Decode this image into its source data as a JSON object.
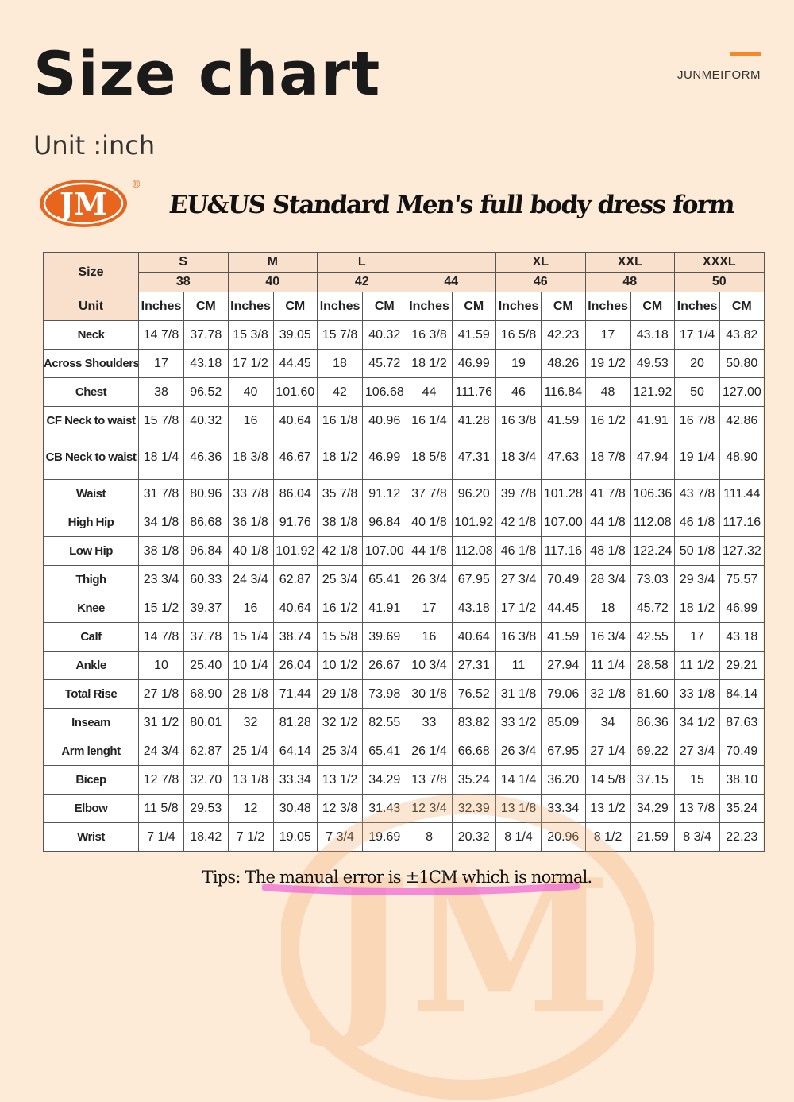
{
  "header": {
    "title": "Size chart",
    "brand": "JUNMEIFORM"
  },
  "unit_label": "Unit :inch",
  "logo": {
    "text": "JM",
    "mark": "®"
  },
  "subtitle": "EU&US Standard Men's full body dress form",
  "colors": {
    "background": "#fdebd7",
    "header_cell": "#f9e0cc",
    "accent": "#f28a2c",
    "highlight": "#f06ad8"
  },
  "table": {
    "size_label": "Size",
    "unit_label": "Unit",
    "sizes": [
      "S",
      "M",
      "L",
      "",
      "XL",
      "XXL",
      "XXXL"
    ],
    "numbers": [
      "38",
      "40",
      "42",
      "44",
      "46",
      "48",
      "50"
    ],
    "unit_inches": "Inches",
    "unit_cm": "CM",
    "rows": [
      {
        "label": "Neck",
        "values": [
          "14 7/8",
          "37.78",
          "15 3/8",
          "39.05",
          "15 7/8",
          "40.32",
          "16 3/8",
          "41.59",
          "16 5/8",
          "42.23",
          "17",
          "43.18",
          "17 1/4",
          "43.82"
        ]
      },
      {
        "label": "Across Shoulders",
        "values": [
          "17",
          "43.18",
          "17 1/2",
          "44.45",
          "18",
          "45.72",
          "18 1/2",
          "46.99",
          "19",
          "48.26",
          "19 1/2",
          "49.53",
          "20",
          "50.80"
        ]
      },
      {
        "label": "Chest",
        "values": [
          "38",
          "96.52",
          "40",
          "101.60",
          "42",
          "106.68",
          "44",
          "111.76",
          "46",
          "116.84",
          "48",
          "121.92",
          "50",
          "127.00"
        ]
      },
      {
        "label": "CF Neck to waist",
        "values": [
          "15 7/8",
          "40.32",
          "16",
          "40.64",
          "16 1/8",
          "40.96",
          "16 1/4",
          "41.28",
          "16 3/8",
          "41.59",
          "16 1/2",
          "41.91",
          "16 7/8",
          "42.86"
        ]
      },
      {
        "label": "CB Neck to waist",
        "values": [
          "18 1/4",
          "46.36",
          "18 3/8",
          "46.67",
          "18 1/2",
          "46.99",
          "18 5/8",
          "47.31",
          "18 3/4",
          "47.63",
          "18 7/8",
          "47.94",
          "19 1/4",
          "48.90"
        ]
      },
      {
        "label": "Waist",
        "values": [
          "31 7/8",
          "80.96",
          "33 7/8",
          "86.04",
          "35 7/8",
          "91.12",
          "37 7/8",
          "96.20",
          "39 7/8",
          "101.28",
          "41 7/8",
          "106.36",
          "43 7/8",
          "111.44"
        ]
      },
      {
        "label": "High Hip",
        "values": [
          "34 1/8",
          "86.68",
          "36 1/8",
          "91.76",
          "38 1/8",
          "96.84",
          "40 1/8",
          "101.92",
          "42 1/8",
          "107.00",
          "44 1/8",
          "112.08",
          "46 1/8",
          "117.16"
        ]
      },
      {
        "label": "Low Hip",
        "values": [
          "38 1/8",
          "96.84",
          "40 1/8",
          "101.92",
          "42 1/8",
          "107.00",
          "44 1/8",
          "112.08",
          "46 1/8",
          "117.16",
          "48 1/8",
          "122.24",
          "50 1/8",
          "127.32"
        ]
      },
      {
        "label": "Thigh",
        "values": [
          "23 3/4",
          "60.33",
          "24 3/4",
          "62.87",
          "25 3/4",
          "65.41",
          "26 3/4",
          "67.95",
          "27 3/4",
          "70.49",
          "28 3/4",
          "73.03",
          "29 3/4",
          "75.57"
        ]
      },
      {
        "label": "Knee",
        "values": [
          "15 1/2",
          "39.37",
          "16",
          "40.64",
          "16 1/2",
          "41.91",
          "17",
          "43.18",
          "17 1/2",
          "44.45",
          "18",
          "45.72",
          "18 1/2",
          "46.99"
        ]
      },
      {
        "label": "Calf",
        "values": [
          "14 7/8",
          "37.78",
          "15 1/4",
          "38.74",
          "15 5/8",
          "39.69",
          "16",
          "40.64",
          "16 3/8",
          "41.59",
          "16 3/4",
          "42.55",
          "17",
          "43.18"
        ]
      },
      {
        "label": "Ankle",
        "values": [
          "10",
          "25.40",
          "10 1/4",
          "26.04",
          "10 1/2",
          "26.67",
          "10 3/4",
          "27.31",
          "11",
          "27.94",
          "11 1/4",
          "28.58",
          "11 1/2",
          "29.21"
        ]
      },
      {
        "label": "Total Rise",
        "values": [
          "27 1/8",
          "68.90",
          "28 1/8",
          "71.44",
          "29 1/8",
          "73.98",
          "30 1/8",
          "76.52",
          "31 1/8",
          "79.06",
          "32 1/8",
          "81.60",
          "33 1/8",
          "84.14"
        ]
      },
      {
        "label": "Inseam",
        "values": [
          "31 1/2",
          "80.01",
          "32",
          "81.28",
          "32 1/2",
          "82.55",
          "33",
          "83.82",
          "33 1/2",
          "85.09",
          "34",
          "86.36",
          "34 1/2",
          "87.63"
        ]
      },
      {
        "label": "Arm lenght",
        "values": [
          "24 3/4",
          "62.87",
          "25 1/4",
          "64.14",
          "25 3/4",
          "65.41",
          "26 1/4",
          "66.68",
          "26 3/4",
          "67.95",
          "27 1/4",
          "69.22",
          "27 3/4",
          "70.49"
        ]
      },
      {
        "label": "Bicep",
        "values": [
          "12 7/8",
          "32.70",
          "13 1/8",
          "33.34",
          "13 1/2",
          "34.29",
          "13 7/8",
          "35.24",
          "14 1/4",
          "36.20",
          "14 5/8",
          "37.15",
          "15",
          "38.10"
        ]
      },
      {
        "label": "Elbow",
        "values": [
          "11 5/8",
          "29.53",
          "12",
          "30.48",
          "12 3/8",
          "31.43",
          "12 3/4",
          "32.39",
          "13 1/8",
          "33.34",
          "13 1/2",
          "34.29",
          "13 7/8",
          "35.24"
        ]
      },
      {
        "label": "Wrist",
        "values": [
          "7 1/4",
          "18.42",
          "7 1/2",
          "19.05",
          "7 3/4",
          "19.69",
          "8",
          "20.32",
          "8 1/4",
          "20.96",
          "8 1/2",
          "21.59",
          "8 3/4",
          "22.23"
        ]
      }
    ]
  },
  "tips": "Tips: The manual error is ±1CM which is normal."
}
